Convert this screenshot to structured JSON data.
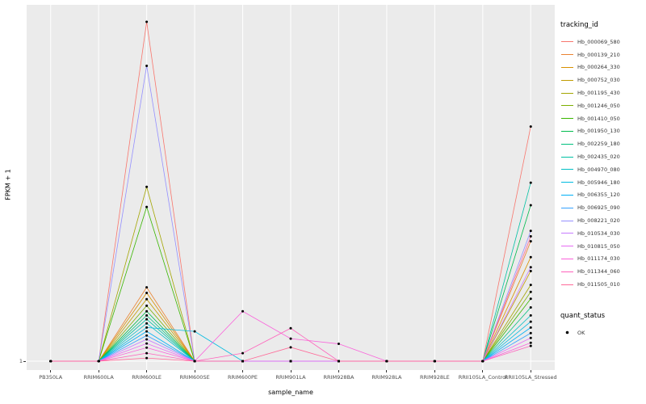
{
  "figure": {
    "bg": "#FFFFFF",
    "panel_bg": "#EBEBEB",
    "grid_color": "#FFFFFF",
    "point_color": "#000000"
  },
  "axes": {
    "x_title": "sample_name",
    "y_title": "FPKM + 1",
    "y_tick": "1"
  },
  "legend": {
    "tracking_title": "tracking_id",
    "quant_title": "quant_status",
    "quant_items": [
      {
        "label": "OK",
        "symbol": "point"
      }
    ]
  },
  "chart_data": {
    "type": "line",
    "title": "",
    "xlabel": "sample_name",
    "ylabel": "FPKM + 1",
    "y_axis_note": "Only tick label shown is '1' at baseline; series values below are relative heights as % of panel height above the FPKM+1 = 1 baseline (estimated from pixels).",
    "legend_position": "right",
    "grid": "vertical major gridlines per category, white on gray panel",
    "point_marker": "black dot (quant_status = OK)",
    "categories": [
      "PB350LA",
      "RRIM600LA",
      "RRIM600LE",
      "RRIM600SE",
      "RRIM600PE",
      "RRIM901LA",
      "RRIM928BA",
      "RRIM928LA",
      "RRIM928LE",
      "RRII105LA_Control",
      "RRII105LA_Stressed"
    ],
    "series": [
      {
        "name": "Hb_000069_580",
        "color": "#F8766D",
        "values": [
          0,
          0,
          97.9,
          0,
          0,
          0,
          0,
          0,
          0,
          0,
          67.7
        ]
      },
      {
        "name": "Hb_000139_210",
        "color": "#EA8331",
        "values": [
          0,
          0,
          21.3,
          0,
          0,
          0,
          0,
          0,
          0,
          0,
          34.6
        ]
      },
      {
        "name": "Hb_000264_330",
        "color": "#D89000",
        "values": [
          0,
          0,
          19.7,
          0,
          0,
          0,
          0,
          0,
          0,
          0,
          30
        ]
      },
      {
        "name": "Hb_000752_030",
        "color": "#C09B00",
        "values": [
          0,
          0,
          17.9,
          0,
          0,
          0,
          0,
          0,
          0,
          0,
          26
        ]
      },
      {
        "name": "Hb_001195_430",
        "color": "#A3A500",
        "values": [
          0,
          0,
          50.3,
          0,
          0,
          0,
          0,
          0,
          0,
          0,
          22
        ]
      },
      {
        "name": "Hb_001246_050",
        "color": "#7CAE00",
        "values": [
          0,
          0,
          16,
          0,
          0,
          0,
          0,
          0,
          0,
          0,
          20
        ]
      },
      {
        "name": "Hb_001410_050",
        "color": "#39B600",
        "values": [
          0,
          0,
          44.5,
          0,
          0,
          0,
          0,
          0,
          0,
          0,
          18
        ]
      },
      {
        "name": "Hb_001950_130",
        "color": "#00BB4E",
        "values": [
          0,
          0,
          14.4,
          0,
          0,
          0,
          0,
          0,
          0,
          0,
          45
        ]
      },
      {
        "name": "Hb_002259_180",
        "color": "#00BF7D",
        "values": [
          0,
          0,
          13.2,
          0,
          0,
          0,
          0,
          0,
          0,
          0,
          15.5
        ]
      },
      {
        "name": "Hb_002435_020",
        "color": "#00C1A3",
        "values": [
          0,
          0,
          12.1,
          0,
          0,
          0,
          0,
          0,
          0,
          0,
          51.5
        ]
      },
      {
        "name": "Hb_004970_080",
        "color": "#00BFC4",
        "values": [
          0,
          0,
          10.9,
          0,
          0,
          0,
          0,
          0,
          0,
          0,
          13.2
        ]
      },
      {
        "name": "Hb_005946_180",
        "color": "#00BAE0",
        "values": [
          0,
          0,
          9.7,
          8.6,
          0,
          0,
          0,
          0,
          0,
          0,
          11.4
        ]
      },
      {
        "name": "Hb_006355_120",
        "color": "#00B0F6",
        "values": [
          0,
          0,
          8.6,
          0,
          0,
          0,
          0,
          0,
          0,
          0,
          9.7
        ]
      },
      {
        "name": "Hb_006925_090",
        "color": "#35A2FF",
        "values": [
          0,
          0,
          7.4,
          0,
          0,
          0,
          0,
          0,
          0,
          0,
          8.1
        ]
      },
      {
        "name": "Hb_008221_020",
        "color": "#9590FF",
        "values": [
          0,
          0,
          85.2,
          0,
          0,
          0,
          0,
          0,
          0,
          0,
          37.6
        ]
      },
      {
        "name": "Hb_010534_030",
        "color": "#C77CFF",
        "values": [
          0,
          0,
          6.3,
          0,
          0,
          0,
          0,
          0,
          0,
          0,
          27.1
        ]
      },
      {
        "name": "Hb_010815_050",
        "color": "#E76BF3",
        "values": [
          0,
          0,
          5.1,
          0,
          0,
          0,
          0,
          0,
          0,
          0,
          6.7
        ]
      },
      {
        "name": "Hb_011174_030",
        "color": "#FA62DB",
        "values": [
          0,
          0,
          3.9,
          0,
          14.4,
          6.5,
          5,
          0,
          0,
          0,
          5.3
        ]
      },
      {
        "name": "Hb_011344_060",
        "color": "#FF62BC",
        "values": [
          0,
          0,
          2.3,
          0,
          2.3,
          9.5,
          0,
          0,
          0,
          0,
          4.4
        ]
      },
      {
        "name": "Hb_011505_010",
        "color": "#FF6A98",
        "values": [
          0,
          0,
          0.9,
          0,
          0,
          4,
          0,
          0,
          0,
          0,
          36
        ]
      }
    ]
  }
}
